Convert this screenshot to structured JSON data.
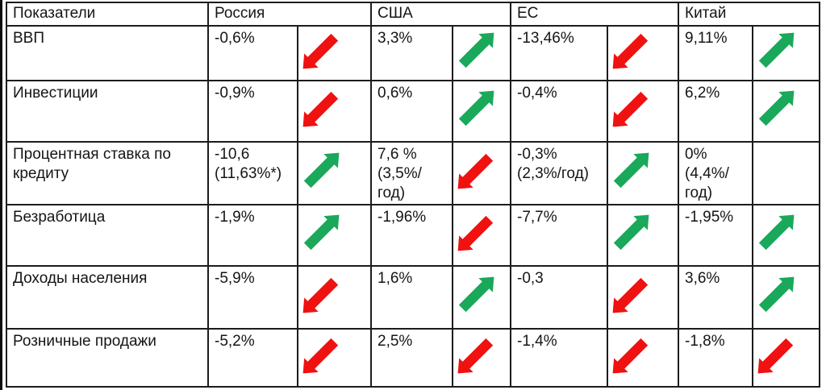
{
  "colors": {
    "trend_up": "#1aa85a",
    "trend_down": "#f01111",
    "border": "#1c1c1c"
  },
  "icons": {
    "up": "trend-up-arrow",
    "down": "trend-down-arrow"
  },
  "table": {
    "header": {
      "indicator": "Показатели",
      "countries": [
        "Россия",
        "США",
        "ЕС",
        "Китай"
      ]
    },
    "rows": [
      {
        "indicator": "ВВП",
        "russia": {
          "value": "-0,6%",
          "trend": "down"
        },
        "usa": {
          "value": "3,3%",
          "trend": "up"
        },
        "eu": {
          "value": "-13,46%",
          "trend": "down"
        },
        "china": {
          "value": "9,11%",
          "trend": "up"
        }
      },
      {
        "indicator": "Инвестиции",
        "russia": {
          "value": "-0,9%",
          "trend": "down"
        },
        "usa": {
          "value": "0,6%",
          "trend": "up"
        },
        "eu": {
          "value": "-0,4%",
          "trend": "down"
        },
        "china": {
          "value": "6,2%",
          "trend": "up"
        }
      },
      {
        "indicator": "Процентная ставка по кредиту",
        "russia": {
          "value": "-10,6 (11,63%*)",
          "trend": "up"
        },
        "usa": {
          "value": "7,6 % (3,5%/год)",
          "trend": "down"
        },
        "eu": {
          "value": "-0,3% (2,3%/год)",
          "trend": "up"
        },
        "china": {
          "value": "0% (4,4%/год)",
          "trend": "none"
        }
      },
      {
        "indicator": "Безработица",
        "russia": {
          "value": "-1,9%",
          "trend": "up"
        },
        "usa": {
          "value": "-1,96%",
          "trend": "down"
        },
        "eu": {
          "value": "-7,7%",
          "trend": "up"
        },
        "china": {
          "value": "-1,95%",
          "trend": "up"
        }
      },
      {
        "indicator": "Доходы населения",
        "russia": {
          "value": "-5,9%",
          "trend": "down"
        },
        "usa": {
          "value": "1,6%",
          "trend": "up"
        },
        "eu": {
          "value": "-0,3",
          "trend": "down"
        },
        "china": {
          "value": "3,6%",
          "trend": "up"
        }
      },
      {
        "indicator": "Розничные продажи",
        "russia": {
          "value": "-5,2%",
          "trend": "down"
        },
        "usa": {
          "value": "2,5%",
          "trend": "down"
        },
        "eu": {
          "value": "-1,4%",
          "trend": "down"
        },
        "china": {
          "value": "-1,8%",
          "trend": "down"
        }
      }
    ]
  }
}
